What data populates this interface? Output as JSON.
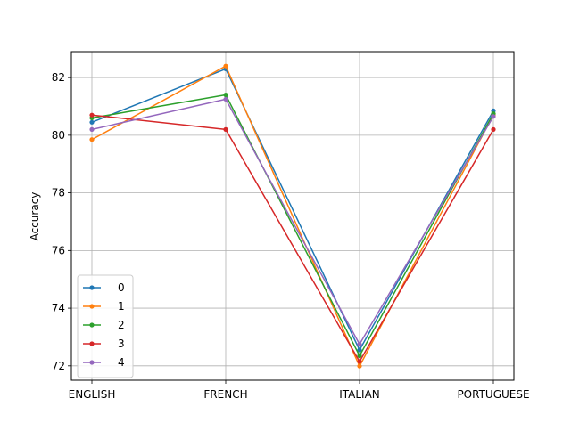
{
  "chart_data": {
    "type": "line",
    "title": "",
    "xlabel": "",
    "ylabel": "Accuracy",
    "categories": [
      "ENGLISH",
      "FRENCH",
      "ITALIAN",
      "PORTUGUESE"
    ],
    "ylim": [
      71.5,
      82.9
    ],
    "yticks": [
      72,
      74,
      76,
      78,
      80,
      82
    ],
    "grid": true,
    "legend_position": "lower-left",
    "series": [
      {
        "name": "0",
        "color": "#1f77b4",
        "values": [
          80.45,
          82.3,
          72.55,
          80.85
        ]
      },
      {
        "name": "1",
        "color": "#ff7f0e",
        "values": [
          79.85,
          82.4,
          71.99,
          80.7
        ]
      },
      {
        "name": "2",
        "color": "#2ca02c",
        "values": [
          80.6,
          81.4,
          72.35,
          80.75
        ]
      },
      {
        "name": "3",
        "color": "#d62728",
        "values": [
          80.7,
          80.2,
          72.15,
          80.2
        ]
      },
      {
        "name": "4",
        "color": "#9467bd",
        "values": [
          80.2,
          81.25,
          72.75,
          80.65
        ]
      }
    ]
  }
}
